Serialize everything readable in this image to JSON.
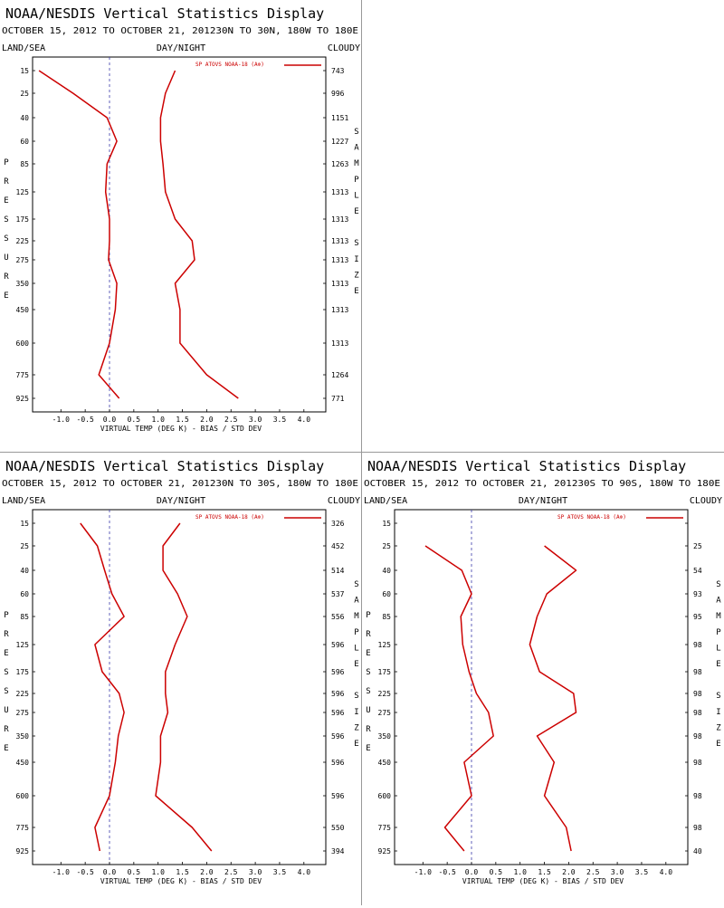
{
  "colors": {
    "series": "#cc0000",
    "zero_line": "#3a3aaa",
    "frame": "#000000"
  },
  "chart_data": [
    {
      "type": "line",
      "title": "NOAA/NESDIS Vertical Statistics Display",
      "date_region": "OCTOBER 15, 2012 TO OCTOBER 21, 201230N TO 30N, 180W TO 180E",
      "left_header": "LAND/SEA",
      "center_header": "DAY/NIGHT",
      "right_header": "CLOUDY",
      "legend": "SP ATOVS NOAA-18 (A⊗)",
      "xlabel": "VIRTUAL TEMP (DEG K) - BIAS / STD DEV",
      "ylabel": "PRESSURE",
      "y2label": "SAMPLE SIZE",
      "xlim": [
        -1.5,
        4.5
      ],
      "x_ticks": [
        -1.0,
        -0.5,
        0.0,
        0.5,
        1.0,
        1.5,
        2.0,
        2.5,
        3.0,
        3.5,
        4.0
      ],
      "x_tick_labels": [
        "-1.0",
        "-0.5",
        "0.0",
        "0.5",
        "1.0",
        "1.5",
        "2.0",
        "2.5",
        "3.0",
        "3.5",
        "4.0"
      ],
      "pressure_levels": [
        "15",
        "25",
        "40",
        "60",
        "85",
        "125",
        "175",
        "225",
        "275",
        "350",
        "450",
        "600",
        "775",
        "925"
      ],
      "sample_size": [
        "743",
        "996",
        "1151",
        "1227",
        "1263",
        "1313",
        "1313",
        "1313",
        "1313",
        "1313",
        "1313",
        "1313",
        "1264",
        "771"
      ],
      "series": [
        {
          "name": "BIAS",
          "values": [
            -1.45,
            -0.75,
            -0.05,
            0.15,
            -0.05,
            -0.08,
            0.0,
            0.0,
            -0.02,
            0.15,
            0.12,
            0.0,
            -0.22,
            0.2
          ]
        },
        {
          "name": "STD DEV",
          "values": [
            1.35,
            1.15,
            1.05,
            1.05,
            1.1,
            1.15,
            1.35,
            1.7,
            1.75,
            1.35,
            1.45,
            1.45,
            2.0,
            2.65
          ]
        }
      ]
    },
    {
      "type": "line",
      "title": "NOAA/NESDIS Vertical Statistics Display",
      "date_region": "OCTOBER 15, 2012 TO OCTOBER 21, 201230N TO 30S, 180W TO 180E",
      "left_header": "LAND/SEA",
      "center_header": "DAY/NIGHT",
      "right_header": "CLOUDY",
      "legend": "SP ATOVS NOAA-18 (A⊗)",
      "xlabel": "VIRTUAL TEMP (DEG K) - BIAS / STD DEV",
      "ylabel": "PRESSURE",
      "y2label": "SAMPLE SIZE",
      "xlim": [
        -1.5,
        4.5
      ],
      "x_ticks": [
        -1.0,
        -0.5,
        0.0,
        0.5,
        1.0,
        1.5,
        2.0,
        2.5,
        3.0,
        3.5,
        4.0
      ],
      "x_tick_labels": [
        "-1.0",
        "-0.5",
        "0.0",
        "0.5",
        "1.0",
        "1.5",
        "2.0",
        "2.5",
        "3.0",
        "3.5",
        "4.0"
      ],
      "pressure_levels": [
        "15",
        "25",
        "40",
        "60",
        "85",
        "125",
        "175",
        "225",
        "275",
        "350",
        "450",
        "600",
        "775",
        "925"
      ],
      "sample_size": [
        "326",
        "452",
        "514",
        "537",
        "556",
        "596",
        "596",
        "596",
        "596",
        "596",
        "596",
        "596",
        "550",
        "394"
      ],
      "series": [
        {
          "name": "BIAS",
          "values": [
            -0.6,
            -0.25,
            -0.1,
            0.05,
            0.3,
            -0.3,
            -0.15,
            0.2,
            0.3,
            0.18,
            0.12,
            0.0,
            -0.3,
            -0.2
          ]
        },
        {
          "name": "STD DEV",
          "values": [
            1.45,
            1.1,
            1.1,
            1.4,
            1.6,
            1.35,
            1.15,
            1.15,
            1.2,
            1.05,
            1.05,
            0.95,
            1.7,
            2.1
          ]
        }
      ]
    },
    {
      "type": "line",
      "title": "NOAA/NESDIS Vertical Statistics Display",
      "date_region": "OCTOBER 15, 2012 TO OCTOBER 21, 201230S TO 90S, 180W TO 180E",
      "left_header": "LAND/SEA",
      "center_header": "DAY/NIGHT",
      "right_header": "CLOUDY",
      "legend": "SP ATOVS NOAA-18 (A⊗)",
      "xlabel": "VIRTUAL TEMP (DEG K) - BIAS / STD DEV",
      "ylabel": "PRESSURE",
      "y2label": "SAMPLE SIZE",
      "xlim": [
        -1.5,
        4.5
      ],
      "x_ticks": [
        -1.0,
        -0.5,
        0.0,
        0.5,
        1.0,
        1.5,
        2.0,
        2.5,
        3.0,
        3.5,
        4.0
      ],
      "x_tick_labels": [
        "-1.0",
        "-0.5",
        "0.0",
        "0.5",
        "1.0",
        "1.5",
        "2.0",
        "2.5",
        "3.0",
        "3.5",
        "4.0"
      ],
      "pressure_levels": [
        "15",
        "25",
        "40",
        "60",
        "85",
        "125",
        "175",
        "225",
        "275",
        "350",
        "450",
        "600",
        "775",
        "925"
      ],
      "sample_size": [
        "",
        "25",
        "54",
        "93",
        "95",
        "98",
        "98",
        "98",
        "98",
        "98",
        "98",
        "98",
        "98",
        "40"
      ],
      "series": [
        {
          "name": "BIAS",
          "values": [
            null,
            -0.95,
            -0.2,
            0.0,
            -0.22,
            -0.18,
            -0.05,
            0.1,
            0.35,
            0.45,
            -0.15,
            0.0,
            -0.55,
            -0.15
          ]
        },
        {
          "name": "STD DEV",
          "values": [
            null,
            1.5,
            2.15,
            1.55,
            1.35,
            1.2,
            1.4,
            2.1,
            2.15,
            1.35,
            1.7,
            1.5,
            1.95,
            2.05
          ]
        }
      ]
    }
  ]
}
